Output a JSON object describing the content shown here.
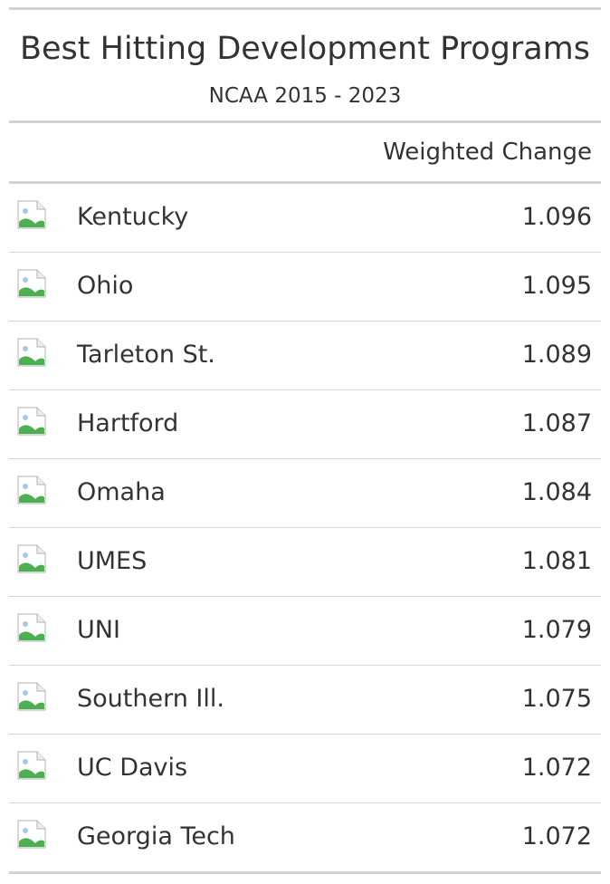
{
  "chart_data": {
    "type": "table",
    "title": "Best Hitting Development Programs",
    "subtitle": "NCAA 2015 - 2023",
    "columns": [
      "",
      "",
      "Weighted Change"
    ],
    "rows": [
      {
        "team": "Kentucky",
        "value": "1.096",
        "logo_icon": "broken-image-icon"
      },
      {
        "team": "Ohio",
        "value": "1.095",
        "logo_icon": "broken-image-icon"
      },
      {
        "team": "Tarleton St.",
        "value": "1.089",
        "logo_icon": "broken-image-icon"
      },
      {
        "team": "Hartford",
        "value": "1.087",
        "logo_icon": "broken-image-icon"
      },
      {
        "team": "Omaha",
        "value": "1.084",
        "logo_icon": "broken-image-icon"
      },
      {
        "team": "UMES",
        "value": "1.081",
        "logo_icon": "broken-image-icon"
      },
      {
        "team": "UNI",
        "value": "1.079",
        "logo_icon": "broken-image-icon"
      },
      {
        "team": "Southern Ill.",
        "value": "1.075",
        "logo_icon": "broken-image-icon"
      },
      {
        "team": "UC Davis",
        "value": "1.072",
        "logo_icon": "broken-image-icon"
      },
      {
        "team": "Georgia Tech",
        "value": "1.072",
        "logo_icon": "broken-image-icon"
      }
    ]
  },
  "colors": {
    "text": "#333333",
    "rule": "#d3d3d3",
    "icon_green": "#4caf50",
    "icon_blue": "#a7c7e7"
  }
}
